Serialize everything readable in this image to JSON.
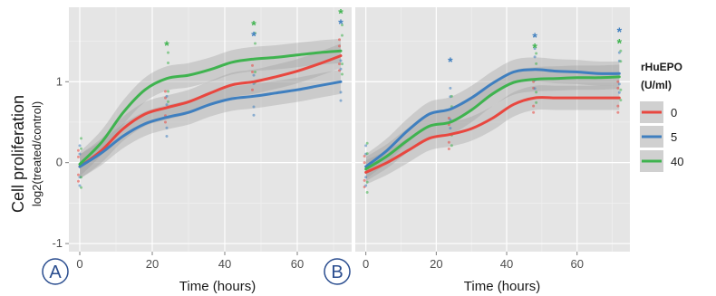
{
  "chart_data": {
    "type": "line",
    "ylabel": "Cell proliferation",
    "ylabel_sub": "log2(treated/control)",
    "xlabel": "Time (hours)",
    "xlim": [
      -3,
      75
    ],
    "ylim": [
      -1.1,
      1.92
    ],
    "x_ticks": [
      0,
      20,
      40,
      60
    ],
    "y_ticks": [
      -1,
      0,
      1
    ],
    "legend": {
      "title_line1": "rHuEPO",
      "title_line2": "(U/ml)",
      "placement": "right",
      "entries": [
        {
          "label": "0",
          "color": "#e8473f"
        },
        {
          "label": "5",
          "color": "#3f7fbf"
        },
        {
          "label": "40",
          "color": "#3fb34f"
        }
      ]
    },
    "panels": [
      {
        "letter": "A",
        "series": [
          {
            "color": "#e8473f",
            "x": [
              0,
              6,
              12,
              18,
              24,
              30,
              36,
              42,
              48,
              54,
              60,
              66,
              72
            ],
            "y": [
              -0.05,
              0.15,
              0.42,
              0.6,
              0.68,
              0.75,
              0.86,
              0.96,
              1.0,
              1.06,
              1.13,
              1.22,
              1.32
            ]
          },
          {
            "color": "#3f7fbf",
            "x": [
              0,
              6,
              12,
              18,
              24,
              30,
              36,
              42,
              48,
              54,
              60,
              66,
              72
            ],
            "y": [
              -0.05,
              0.12,
              0.33,
              0.48,
              0.56,
              0.62,
              0.72,
              0.79,
              0.82,
              0.86,
              0.9,
              0.95,
              1.0
            ]
          },
          {
            "color": "#3fb34f",
            "x": [
              0,
              6,
              12,
              18,
              24,
              30,
              36,
              42,
              48,
              54,
              60,
              66,
              72
            ],
            "y": [
              -0.02,
              0.25,
              0.62,
              0.9,
              1.04,
              1.08,
              1.15,
              1.24,
              1.28,
              1.3,
              1.33,
              1.36,
              1.38
            ]
          }
        ],
        "annotations": [
          {
            "text": "*",
            "x": 24,
            "y": 1.45,
            "color": "#3fb34f"
          },
          {
            "text": "*",
            "x": 48,
            "y": 1.7,
            "color": "#3fb34f"
          },
          {
            "text": "*",
            "x": 48,
            "y": 1.57,
            "color": "#3f7fbf"
          },
          {
            "text": "*",
            "x": 72,
            "y": 1.85,
            "color": "#3fb34f"
          },
          {
            "text": "*",
            "x": 72,
            "y": 1.72,
            "color": "#3f7fbf"
          }
        ]
      },
      {
        "letter": "B",
        "series": [
          {
            "color": "#e8473f",
            "x": [
              0,
              6,
              12,
              18,
              24,
              30,
              36,
              42,
              48,
              54,
              60,
              66,
              72
            ],
            "y": [
              -0.12,
              0.0,
              0.15,
              0.3,
              0.35,
              0.42,
              0.55,
              0.72,
              0.8,
              0.8,
              0.8,
              0.8,
              0.8
            ]
          },
          {
            "color": "#3f7fbf",
            "x": [
              0,
              6,
              12,
              18,
              24,
              30,
              36,
              42,
              48,
              54,
              60,
              66,
              72
            ],
            "y": [
              -0.05,
              0.15,
              0.4,
              0.6,
              0.66,
              0.8,
              0.98,
              1.12,
              1.15,
              1.13,
              1.12,
              1.1,
              1.1
            ]
          },
          {
            "color": "#3fb34f",
            "x": [
              0,
              6,
              12,
              18,
              24,
              30,
              36,
              42,
              48,
              54,
              60,
              66,
              72
            ],
            "y": [
              -0.08,
              0.08,
              0.28,
              0.45,
              0.5,
              0.65,
              0.85,
              0.99,
              1.03,
              1.04,
              1.05,
              1.05,
              1.06
            ]
          }
        ],
        "annotations": [
          {
            "text": "*",
            "x": 24,
            "y": 1.25,
            "color": "#3f7fbf"
          },
          {
            "text": "*",
            "x": 48,
            "y": 1.55,
            "color": "#3f7fbf"
          },
          {
            "text": "*",
            "x": 48,
            "y": 1.42,
            "color": "#3fb34f"
          },
          {
            "text": "*",
            "x": 72,
            "y": 1.62,
            "color": "#3f7fbf"
          },
          {
            "text": "*",
            "x": 72,
            "y": 1.48,
            "color": "#3fb34f"
          }
        ]
      }
    ]
  }
}
